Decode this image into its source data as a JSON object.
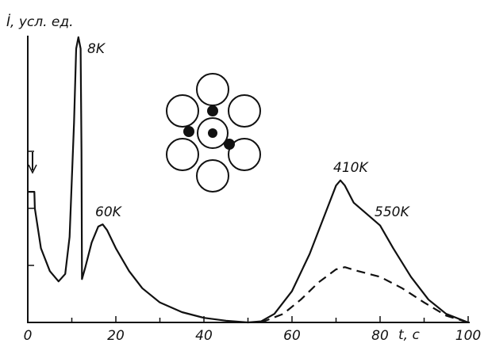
{
  "chart_data": {
    "type": "line",
    "y_label": "İ, усл. ед.",
    "x_label": "t, c",
    "xlim": [
      0,
      100
    ],
    "ylim": [
      0,
      5
    ],
    "xticks": [
      0,
      20,
      40,
      60,
      80,
      100
    ],
    "xminor_ticks": [
      10,
      30,
      50,
      70,
      90
    ],
    "yticks": [
      1,
      2,
      3
    ],
    "annotations": [
      "8K",
      "60K",
      "410K",
      "550K"
    ],
    "series": [
      {
        "color": "#111111",
        "dash": false,
        "x": [
          0,
          1.5,
          1.6,
          3,
          5,
          7,
          8.5,
          9.5,
          10.5,
          11,
          11.5,
          12,
          12.2,
          12.3,
          13,
          14.5,
          16,
          17,
          18,
          20,
          23,
          26,
          30,
          35,
          40,
          45,
          50,
          53,
          56,
          60,
          64,
          68,
          70,
          71,
          72,
          74,
          77,
          80,
          83,
          87,
          91,
          95,
          100
        ],
        "values": [
          2.29,
          2.29,
          2.0,
          1.3,
          0.9,
          0.72,
          0.85,
          1.5,
          3.5,
          4.8,
          5.0,
          4.8,
          3.0,
          0.76,
          0.95,
          1.4,
          1.68,
          1.72,
          1.62,
          1.3,
          0.9,
          0.6,
          0.35,
          0.18,
          0.08,
          0.03,
          0.0,
          0.02,
          0.15,
          0.55,
          1.2,
          2.0,
          2.4,
          2.49,
          2.4,
          2.1,
          1.9,
          1.7,
          1.3,
          0.8,
          0.4,
          0.15,
          0
        ]
      },
      {
        "color": "#111111",
        "dash": true,
        "x": [
          53,
          58,
          62,
          66,
          70,
          72,
          75,
          80,
          85,
          90,
          95,
          100
        ],
        "values": [
          0,
          0.15,
          0.4,
          0.7,
          0.93,
          0.97,
          0.9,
          0.8,
          0.6,
          0.35,
          0.12,
          0
        ]
      }
    ]
  }
}
